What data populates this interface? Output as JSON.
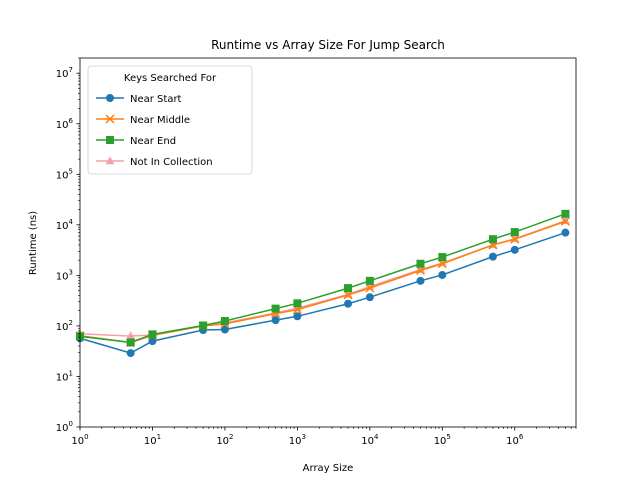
{
  "chart_data": {
    "type": "line",
    "title": "Runtime vs Array Size For Jump Search",
    "xlabel": "Array Size",
    "ylabel": "Runtime (ns)",
    "x_scale": "log",
    "y_scale": "log",
    "xlim": [
      1,
      7000000
    ],
    "ylim": [
      1,
      20000000
    ],
    "x_ticks": [
      {
        "value": 1,
        "base": "10",
        "exp": "0"
      },
      {
        "value": 10,
        "base": "10",
        "exp": "1"
      },
      {
        "value": 100,
        "base": "10",
        "exp": "2"
      },
      {
        "value": 1000,
        "base": "10",
        "exp": "3"
      },
      {
        "value": 10000,
        "base": "10",
        "exp": "4"
      },
      {
        "value": 100000,
        "base": "10",
        "exp": "5"
      },
      {
        "value": 1000000,
        "base": "10",
        "exp": "6"
      }
    ],
    "y_ticks": [
      {
        "value": 1,
        "base": "10",
        "exp": "0"
      },
      {
        "value": 10,
        "base": "10",
        "exp": "1"
      },
      {
        "value": 100,
        "base": "10",
        "exp": "2"
      },
      {
        "value": 1000,
        "base": "10",
        "exp": "3"
      },
      {
        "value": 10000,
        "base": "10",
        "exp": "4"
      },
      {
        "value": 100000,
        "base": "10",
        "exp": "5"
      },
      {
        "value": 1000000,
        "base": "10",
        "exp": "6"
      },
      {
        "value": 10000000,
        "base": "10",
        "exp": "7"
      }
    ],
    "grid": false,
    "legend": {
      "title": "Keys Searched For",
      "position": "top-left"
    },
    "x": [
      1,
      5,
      10,
      50,
      100,
      500,
      1000,
      5000,
      10000,
      50000,
      100000,
      500000,
      1000000,
      5000000
    ],
    "series": [
      {
        "name": "Not In Collection",
        "color": "#f4a0a8",
        "marker": "triangle",
        "values": [
          70,
          63,
          66,
          100,
          115,
          180,
          225,
          420,
          600,
          1300,
          1750,
          4000,
          5300,
          12000
        ]
      },
      {
        "name": "Near Start",
        "color": "#1f77b4",
        "marker": "circle",
        "values": [
          57,
          29,
          50,
          83,
          85,
          130,
          155,
          275,
          370,
          780,
          1020,
          2350,
          3200,
          7000
        ]
      },
      {
        "name": "Near Middle",
        "color": "#ff7f0e",
        "marker": "x",
        "values": [
          64,
          47,
          65,
          100,
          110,
          175,
          210,
          410,
          560,
          1250,
          1700,
          4000,
          5200,
          11700
        ]
      },
      {
        "name": "Near End",
        "color": "#2ca02c",
        "marker": "square",
        "values": [
          62,
          47,
          68,
          102,
          125,
          220,
          280,
          560,
          780,
          1700,
          2300,
          5200,
          7200,
          16500
        ]
      }
    ],
    "legend_order": [
      "Near Start",
      "Near Middle",
      "Near End",
      "Not In Collection"
    ]
  }
}
